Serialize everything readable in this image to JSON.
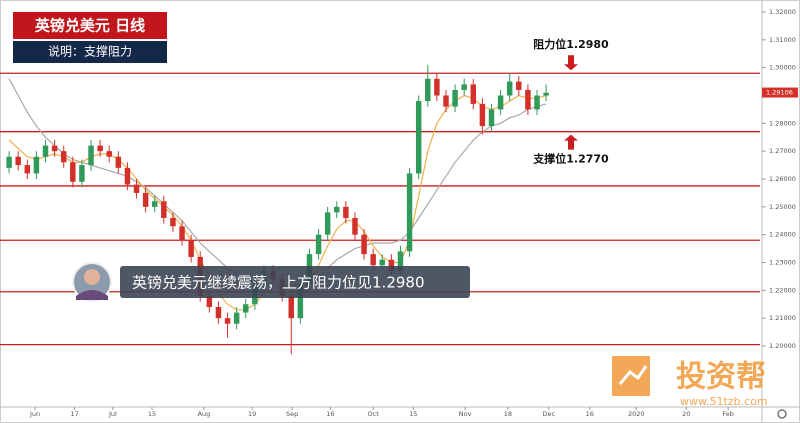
{
  "chart_data": {
    "type": "candlestick",
    "title": "英镑兑美元  日线",
    "subtitle": "说明：支撑阻力",
    "caption": "英镑兑美元继续震荡，上方阻力位见1.2980",
    "watermark": "投资帮",
    "watermark_url": "www.51tzb.com",
    "up_color": "#2f9a5a",
    "down_color": "#d3302a",
    "level_color": "#c81e1e",
    "ylim": [
      1.2,
      1.32
    ],
    "yticks": [
      {
        "value": 1.2,
        "label": "1.20000"
      },
      {
        "value": 1.21,
        "label": "1.21000"
      },
      {
        "value": 1.22,
        "label": "1.22000"
      },
      {
        "value": 1.23,
        "label": "1.23000"
      },
      {
        "value": 1.24,
        "label": "1.24000"
      },
      {
        "value": 1.25,
        "label": "1.25000"
      },
      {
        "value": 1.26,
        "label": "1.26000"
      },
      {
        "value": 1.27,
        "label": "1.27000"
      },
      {
        "value": 1.28,
        "label": "1.28000"
      },
      {
        "value": 1.29,
        "label": "1.29000"
      },
      {
        "value": 1.3,
        "label": "1.30000"
      },
      {
        "value": 1.31,
        "label": "1.31000"
      },
      {
        "value": 1.32,
        "label": "1.32000"
      }
    ],
    "xlim": [
      -1,
      82.5
    ],
    "xticks": [
      {
        "value": 2.85,
        "label": "Jun"
      },
      {
        "value": 7.2,
        "label": "17"
      },
      {
        "value": 11.4,
        "label": "Jul"
      },
      {
        "value": 15.7,
        "label": "15"
      },
      {
        "value": 21.4,
        "label": "Aug"
      },
      {
        "value": 26.7,
        "label": "19"
      },
      {
        "value": 31.1,
        "label": "Sep"
      },
      {
        "value": 35.3,
        "label": "16"
      },
      {
        "value": 40,
        "label": "Oct"
      },
      {
        "value": 44.4,
        "label": "15"
      },
      {
        "value": 50.1,
        "label": "Nov"
      },
      {
        "value": 54.8,
        "label": "18"
      },
      {
        "value": 59.3,
        "label": "Dec"
      },
      {
        "value": 63.8,
        "label": "16"
      },
      {
        "value": 68.9,
        "label": "2020"
      },
      {
        "value": 74.4,
        "label": "20"
      },
      {
        "value": 79,
        "label": "Feb"
      }
    ],
    "last_price": 1.29106,
    "levels": [
      1.298,
      1.277,
      1.2575,
      1.238,
      1.2195,
      1.2005
    ],
    "annotations": [
      {
        "text": "阻力位1.2980",
        "value": 1.298,
        "direction": "down"
      },
      {
        "text": "支撑位1.2770",
        "value": 1.277,
        "direction": "up"
      }
    ],
    "open": [
      1.264,
      1.268,
      1.265,
      1.262,
      1.268,
      1.272,
      1.27,
      1.266,
      1.259,
      1.265,
      1.272,
      1.27,
      1.268,
      1.264,
      1.258,
      1.255,
      1.25,
      1.252,
      1.246,
      1.243,
      1.238,
      1.232,
      1.218,
      1.214,
      1.21,
      1.208,
      1.212,
      1.215,
      1.222,
      1.227,
      1.224,
      1.218,
      1.21,
      1.222,
      1.233,
      1.24,
      1.248,
      1.25,
      1.246,
      1.24,
      1.233,
      1.229,
      1.231,
      1.227,
      1.234,
      1.262,
      1.288,
      1.296,
      1.29,
      1.286,
      1.292,
      1.294,
      1.287,
      1.279,
      1.285,
      1.29,
      1.295,
      1.292,
      1.285,
      1.29
    ],
    "high": [
      1.27,
      1.27,
      1.267,
      1.27,
      1.274,
      1.274,
      1.272,
      1.268,
      1.267,
      1.274,
      1.274,
      1.272,
      1.27,
      1.266,
      1.26,
      1.257,
      1.254,
      1.254,
      1.248,
      1.245,
      1.24,
      1.234,
      1.22,
      1.216,
      1.212,
      1.214,
      1.217,
      1.224,
      1.229,
      1.229,
      1.226,
      1.22,
      1.224,
      1.235,
      1.242,
      1.25,
      1.252,
      1.252,
      1.248,
      1.242,
      1.235,
      1.233,
      1.233,
      1.236,
      1.264,
      1.29,
      1.301,
      1.298,
      1.292,
      1.294,
      1.296,
      1.296,
      1.289,
      1.287,
      1.292,
      1.298,
      1.297,
      1.294,
      1.292,
      1.294
    ],
    "low": [
      1.262,
      1.263,
      1.26,
      1.26,
      1.266,
      1.268,
      1.264,
      1.257,
      1.257,
      1.263,
      1.268,
      1.266,
      1.262,
      1.256,
      1.253,
      1.248,
      1.248,
      1.244,
      1.241,
      1.236,
      1.23,
      1.216,
      1.212,
      1.208,
      1.203,
      1.206,
      1.21,
      1.213,
      1.22,
      1.222,
      1.216,
      1.197,
      1.208,
      1.22,
      1.231,
      1.238,
      1.246,
      1.244,
      1.238,
      1.231,
      1.227,
      1.227,
      1.225,
      1.225,
      1.232,
      1.26,
      1.286,
      1.288,
      1.284,
      1.284,
      1.29,
      1.285,
      1.276,
      1.277,
      1.283,
      1.288,
      1.29,
      1.283,
      1.283,
      1.288
    ],
    "close": [
      1.268,
      1.265,
      1.262,
      1.268,
      1.272,
      1.27,
      1.266,
      1.259,
      1.265,
      1.272,
      1.27,
      1.268,
      1.264,
      1.258,
      1.255,
      1.25,
      1.252,
      1.246,
      1.243,
      1.238,
      1.232,
      1.218,
      1.214,
      1.21,
      1.208,
      1.212,
      1.215,
      1.222,
      1.227,
      1.224,
      1.218,
      1.21,
      1.222,
      1.233,
      1.24,
      1.248,
      1.25,
      1.246,
      1.24,
      1.233,
      1.229,
      1.231,
      1.227,
      1.234,
      1.262,
      1.288,
      1.296,
      1.29,
      1.286,
      1.292,
      1.294,
      1.287,
      1.279,
      1.285,
      1.29,
      1.295,
      1.292,
      1.285,
      1.29,
      1.291
    ],
    "lines": [
      {
        "color": "#a8a8a8",
        "values": [
          1.296,
          1.29,
          1.284,
          1.279,
          1.275,
          1.272,
          1.269,
          1.267,
          1.266,
          1.265,
          1.264,
          1.263,
          1.262,
          1.261,
          1.259,
          1.257,
          1.254,
          1.251,
          1.248,
          1.245,
          1.241,
          1.237,
          1.234,
          1.231,
          1.228,
          1.226,
          1.224,
          1.223,
          1.222,
          1.222,
          1.222,
          1.222,
          1.222,
          1.223,
          1.225,
          1.228,
          1.231,
          1.233,
          1.235,
          1.236,
          1.237,
          1.237,
          1.237,
          1.238,
          1.241,
          1.246,
          1.251,
          1.256,
          1.261,
          1.266,
          1.27,
          1.274,
          1.277,
          1.279,
          1.28,
          1.282,
          1.283,
          1.285,
          1.286,
          1.287
        ]
      },
      {
        "color": "#f0b04a",
        "values": [
          1.274,
          1.271,
          1.268,
          1.267,
          1.268,
          1.269,
          1.268,
          1.266,
          1.266,
          1.268,
          1.269,
          1.269,
          1.267,
          1.264,
          1.26,
          1.256,
          1.253,
          1.25,
          1.247,
          1.243,
          1.238,
          1.231,
          1.225,
          1.219,
          1.215,
          1.213,
          1.213,
          1.215,
          1.219,
          1.221,
          1.221,
          1.218,
          1.219,
          1.223,
          1.229,
          1.236,
          1.242,
          1.245,
          1.245,
          1.241,
          1.236,
          1.232,
          1.23,
          1.23,
          1.238,
          1.254,
          1.27,
          1.28,
          1.285,
          1.288,
          1.29,
          1.289,
          1.286,
          1.285,
          1.286,
          1.288,
          1.29,
          1.289,
          1.289,
          1.29
        ]
      }
    ]
  }
}
